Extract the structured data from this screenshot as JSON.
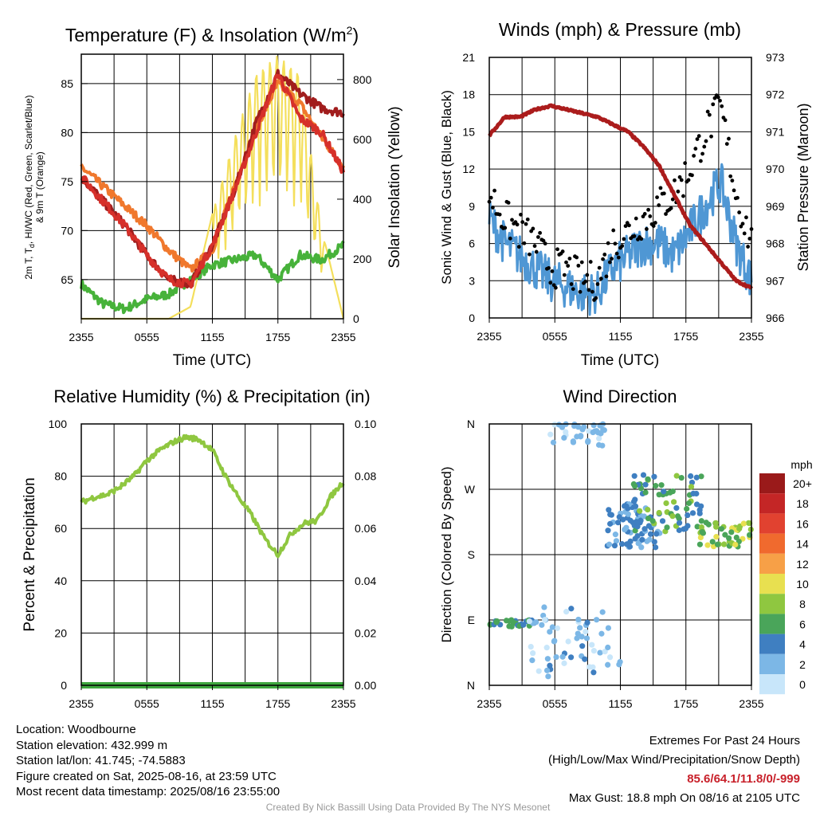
{
  "time_ticks": [
    "2355",
    "0555",
    "1155",
    "1755",
    "2355"
  ],
  "chart_data": [
    {
      "type": "line",
      "title": "Temperature (F) & Insolation (W/m²)",
      "xlabel": "Time (UTC)",
      "ylabel": "2m T, Td, HI/WC (Red, Green, Scarlet/Blue) & 9m T (Orange)",
      "y2label": "Solar Insolation (Yellow)",
      "ylim": [
        61,
        88
      ],
      "y2lim": [
        0,
        885
      ],
      "yticks": [
        "65",
        "70",
        "75",
        "80",
        "85"
      ],
      "y2ticks": [
        "0",
        "200",
        "400",
        "600",
        "800"
      ],
      "colors": {
        "temp": "#d6302a",
        "dew": "#47b23a",
        "hiwc": "#a11d1d",
        "t9": "#f0782d",
        "solar": "#f4df5c"
      },
      "series": [
        {
          "name": "2m T",
          "values": [
            75.5,
            73.0,
            70.5,
            67.5,
            65.0,
            64.5,
            68.5,
            74.0,
            80.0,
            86.0,
            81.5,
            80.0,
            76.0
          ]
        },
        {
          "name": "9m T",
          "values": [
            76.5,
            74.5,
            72.5,
            70.5,
            68.0,
            66.0,
            68.0,
            74.5,
            80.5,
            85.0,
            83.0,
            79.5,
            76.5
          ]
        },
        {
          "name": "HI/WC",
          "values": [
            75.5,
            73.0,
            70.5,
            67.5,
            65.0,
            64.5,
            68.5,
            74.0,
            81.0,
            86.0,
            84.0,
            82.5,
            82.0
          ]
        },
        {
          "name": "Td",
          "values": [
            64.5,
            62.5,
            62.0,
            63.0,
            63.5,
            65.0,
            66.5,
            67.0,
            67.5,
            65.0,
            67.5,
            67.0,
            68.5
          ]
        },
        {
          "name": "Solar",
          "values": [
            0,
            0,
            0,
            0,
            0,
            40,
            350,
            600,
            820,
            880,
            820,
            300,
            0
          ]
        }
      ]
    },
    {
      "type": "line",
      "title": "Winds (mph) & Pressure (mb)",
      "xlabel": "Time (UTC)",
      "ylabel": "Sonic Wind & Gust (Blue, Black)",
      "y2label": "Station Pressure (Maroon)",
      "ylim": [
        0,
        21
      ],
      "y2lim": [
        966,
        973
      ],
      "yticks": [
        "0",
        "3",
        "6",
        "9",
        "12",
        "15",
        "18",
        "21"
      ],
      "y2ticks": [
        "966",
        "967",
        "968",
        "969",
        "970",
        "971",
        "972",
        "973"
      ],
      "colors": {
        "wind": "#4f97d4",
        "gust": "#000000",
        "pressure": "#ab1c1c"
      },
      "series": [
        {
          "name": "Wind",
          "values": [
            8,
            6,
            5,
            4,
            3,
            2.5,
            2,
            2,
            4,
            5,
            6,
            6,
            5,
            7,
            9,
            11,
            6,
            3
          ]
        },
        {
          "name": "Gust",
          "values": [
            10,
            8,
            7,
            6,
            4,
            4,
            3,
            3,
            6,
            7,
            8,
            9,
            10,
            12,
            15,
            17,
            10,
            6
          ]
        },
        {
          "name": "Pressure",
          "values": [
            970.9,
            971.4,
            971.4,
            971.6,
            971.7,
            971.6,
            971.5,
            971.4,
            971.2,
            971.0,
            970.6,
            970.1,
            969.3,
            968.5,
            968.0,
            967.5,
            967.0,
            966.8
          ]
        }
      ]
    },
    {
      "type": "line",
      "title": "Relative Humidity (%) & Precipitation (in)",
      "ylabel": "Percent & Precipitation",
      "ylim": [
        0,
        100
      ],
      "y2lim": [
        0,
        0.1
      ],
      "yticks": [
        "0",
        "20",
        "40",
        "60",
        "80",
        "100"
      ],
      "y2ticks": [
        "0.00",
        "0.02",
        "0.04",
        "0.06",
        "0.08",
        "0.10"
      ],
      "colors": {
        "rh": "#8fc740",
        "precip": "#3ea63e"
      },
      "series": [
        {
          "name": "RH",
          "values": [
            70,
            72,
            73,
            76,
            80,
            86,
            90,
            93,
            95,
            94,
            90,
            80,
            72,
            65,
            56,
            50,
            58,
            62,
            63,
            72,
            78
          ]
        },
        {
          "name": "Precip",
          "values": [
            0,
            0,
            0,
            0,
            0,
            0,
            0,
            0,
            0,
            0,
            0,
            0,
            0,
            0,
            0,
            0,
            0,
            0,
            0,
            0,
            0
          ]
        }
      ]
    },
    {
      "type": "scatter",
      "title": "Wind Direction",
      "ylabel": "Direction (Colored By Speed)",
      "yticks": [
        "N",
        "E",
        "S",
        "W",
        "N"
      ],
      "ylim": [
        0,
        360
      ],
      "legend_title": "mph",
      "legend_labels": [
        "20+",
        "18",
        "16",
        "14",
        "12",
        "10",
        "8",
        "6",
        "4",
        "2",
        "0"
      ],
      "legend_colors": [
        "#9a1a1a",
        "#c42626",
        "#e14230",
        "#f06a2e",
        "#f7a047",
        "#e8e050",
        "#8fc740",
        "#4aa55a",
        "#3f7fc1",
        "#7cb7e6",
        "#c8e6fa"
      ]
    }
  ],
  "footer": {
    "location": "Location: Woodbourne",
    "elevation": "Station elevation: 432.999 m",
    "latlon": "Station lat/lon: 41.745; -74.5883",
    "created": "Figure created on Sat, 2025-08-16, at 23:59 UTC",
    "recent": "Most recent data timestamp: 2025/08/16 23:55:00",
    "extremes_title": "Extremes For Past 24 Hours",
    "extremes_legend": "(High/Low/Max Wind/Precipitation/Snow Depth)",
    "extremes_values": "85.6/64.1/11.8/0/-999",
    "max_gust": "Max Gust: 18.8 mph On 08/16 at 2105 UTC",
    "credit": "Created By Nick Bassill Using Data Provided By The NYS Mesonet"
  }
}
